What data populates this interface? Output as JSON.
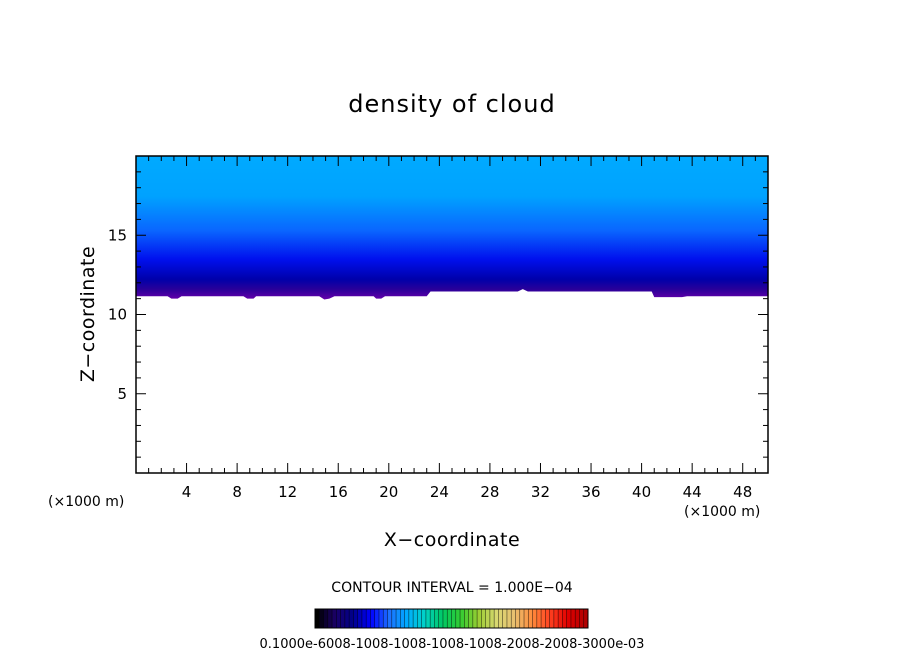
{
  "chart_data": {
    "type": "heatmap",
    "title": "density of cloud",
    "xlabel": "X−coordinate",
    "ylabel": "Z−coordinate",
    "x_unit_label": "(×1000 m)",
    "z_unit_label": "(×1000 m)",
    "xlim": [
      0,
      50
    ],
    "ylim": [
      0,
      20
    ],
    "x_ticks": [
      "4",
      "8",
      "12",
      "16",
      "20",
      "24",
      "28",
      "32",
      "36",
      "40",
      "44",
      "48"
    ],
    "x_tick_values": [
      4,
      8,
      12,
      16,
      20,
      24,
      28,
      32,
      36,
      40,
      44,
      48
    ],
    "y_ticks": [
      "5",
      "10",
      "15"
    ],
    "y_tick_values": [
      5,
      10,
      15
    ],
    "contour_interval_text": "CONTOUR INTERVAL = 1.000E−04",
    "colorbar_labels_text": "0.1000e-6008-1008-1008-1008-1008-2008-2008-3000e-03",
    "cloud_layer": {
      "top_value_color": "#00aaff",
      "bottom_value_color": "#6600aa",
      "base_x": [
        0,
        1.5,
        2.5,
        2.8,
        3.3,
        3.6,
        8.5,
        8.8,
        9.3,
        9.5,
        14.5,
        14.9,
        15.3,
        15.7,
        18.8,
        19.0,
        19.4,
        19.7,
        23.0,
        23.3,
        30.2,
        30.6,
        31.0,
        40.8,
        41.0,
        41.4,
        43.2,
        43.6,
        50
      ],
      "base_z": [
        11.15,
        11.15,
        11.15,
        11.0,
        11.0,
        11.15,
        11.15,
        11.0,
        11.0,
        11.15,
        11.15,
        10.95,
        11.0,
        11.15,
        11.15,
        11.0,
        11.0,
        11.15,
        11.15,
        11.45,
        11.45,
        11.6,
        11.45,
        11.45,
        11.1,
        11.1,
        11.1,
        11.15,
        11.15
      ]
    },
    "colorbar": {
      "colors": [
        "#000000",
        "#1a0066",
        "#00008b",
        "#0000ff",
        "#1e6fff",
        "#00aaff",
        "#00d2c8",
        "#00c864",
        "#32cd32",
        "#9acd32",
        "#d8d870",
        "#e8c070",
        "#ff8c3c",
        "#ff4020",
        "#e00000",
        "#b00000"
      ]
    }
  }
}
